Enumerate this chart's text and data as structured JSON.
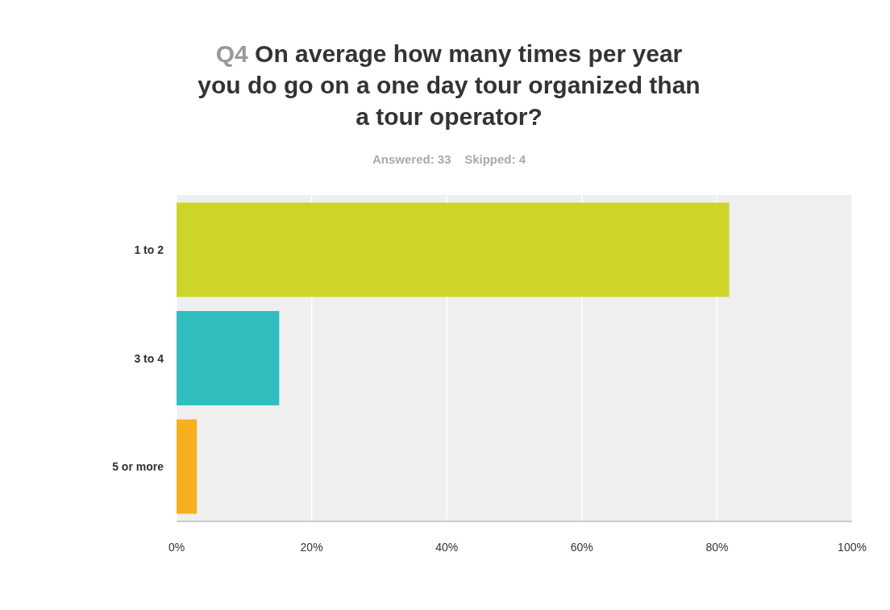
{
  "chart_data": {
    "type": "bar",
    "orientation": "horizontal",
    "title": "Q4 On average how many times per year\nyou do go on a one day tour organized than\na tour operator?",
    "subtitle": "Answered: 33    Skipped: 4",
    "categories": [
      "1 to 2",
      "3 to 4",
      "5 or more"
    ],
    "values": [
      81.8,
      15.2,
      3.0
    ],
    "colors": [
      "#cdd52a",
      "#32bebf",
      "#f6b01e"
    ],
    "xlim": [
      0,
      100
    ],
    "xticks": [
      {
        "value": 0,
        "label": "0%"
      },
      {
        "value": 20,
        "label": "20%"
      },
      {
        "value": 40,
        "label": "40%"
      },
      {
        "value": 60,
        "label": "60%"
      },
      {
        "value": 80,
        "label": "80%"
      },
      {
        "value": 100,
        "label": "100%"
      }
    ],
    "grid": "x"
  }
}
